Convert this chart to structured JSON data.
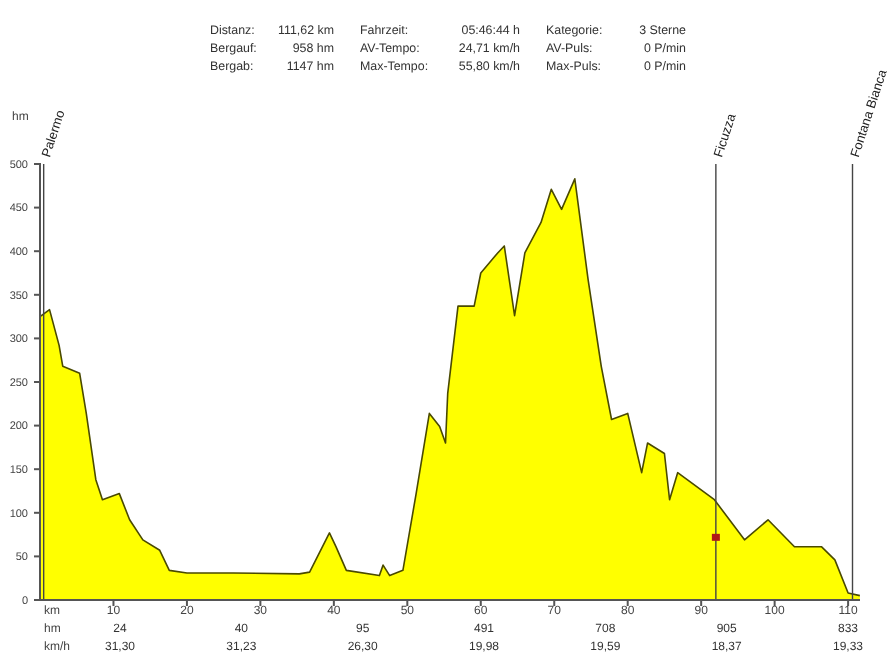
{
  "chart_data": {
    "type": "area",
    "xlabel": "km",
    "ylabel": "hm",
    "x": [
      0,
      0.65,
      1.3,
      2.6,
      3.1,
      5.4,
      6.3,
      7.6,
      8.5,
      10.8,
      12.2,
      14,
      16.3,
      17.6,
      20,
      26.3,
      35.3,
      36.7,
      39.4,
      40.3,
      41.7,
      46.2,
      46.7,
      47.6,
      49.4,
      51.2,
      53,
      54.4,
      55.2,
      55.5,
      56.9,
      59.1,
      60,
      62.3,
      63.2,
      64.6,
      66,
      68.2,
      69.6,
      71,
      72.8,
      74.6,
      76.4,
      77.8,
      80,
      81.9,
      82.7,
      85,
      85.7,
      86.8,
      91.8,
      95.9,
      99.1,
      102.7,
      106.4,
      108.2,
      110,
      111.6
    ],
    "series": [
      {
        "color": "#ffff00",
        "values": [
          325,
          329,
          333,
          292,
          268,
          260,
          214,
          138,
          115,
          122,
          92,
          69,
          57,
          34,
          31,
          31,
          30,
          32,
          77,
          61,
          34,
          28,
          40,
          28,
          34,
          122,
          214,
          199,
          180,
          237,
          337,
          337,
          375,
          398,
          406,
          326,
          398,
          433,
          471,
          448,
          483,
          368,
          268,
          207,
          214,
          146,
          180,
          168,
          115,
          146,
          115,
          69,
          92,
          61,
          61,
          46,
          8,
          5
        ]
      }
    ],
    "xlim": [
      0,
      111.62
    ],
    "xticks": [
      10,
      20,
      30,
      40,
      50,
      60,
      70,
      80,
      90,
      100,
      110
    ],
    "ylim": [
      0,
      500
    ],
    "yticks": [
      0,
      50,
      100,
      150,
      200,
      250,
      300,
      350,
      400,
      450,
      500
    ],
    "grid": false,
    "ref_lines": [
      {
        "axis": "x",
        "value": 0.5,
        "label": "Palermo"
      },
      {
        "axis": "x",
        "value": 92,
        "label": "Ficuzza"
      },
      {
        "axis": "x",
        "value": 110.6,
        "label": "Fontana Bianca"
      }
    ],
    "annotations": [
      "Distanz:",
      "111,62 km",
      "Fahrzeit:",
      "05:46:44 h",
      "Kategorie:",
      "3 Sterne",
      "Bergauf:",
      "958 hm",
      "AV-Tempo:",
      "24,71 km/h",
      "AV-Puls:",
      "0 P/min",
      "Bergab:",
      "1147 hm",
      "Max-Tempo:",
      "55,80 km/h",
      "Max-Puls:",
      "0 P/min",
      "hm",
      "24",
      "40",
      "95",
      "491",
      "708",
      "905",
      "833",
      "km/h",
      "31,30",
      "31,23",
      "26,30",
      "19,98",
      "19,59",
      "18,37",
      "19,33"
    ]
  }
}
